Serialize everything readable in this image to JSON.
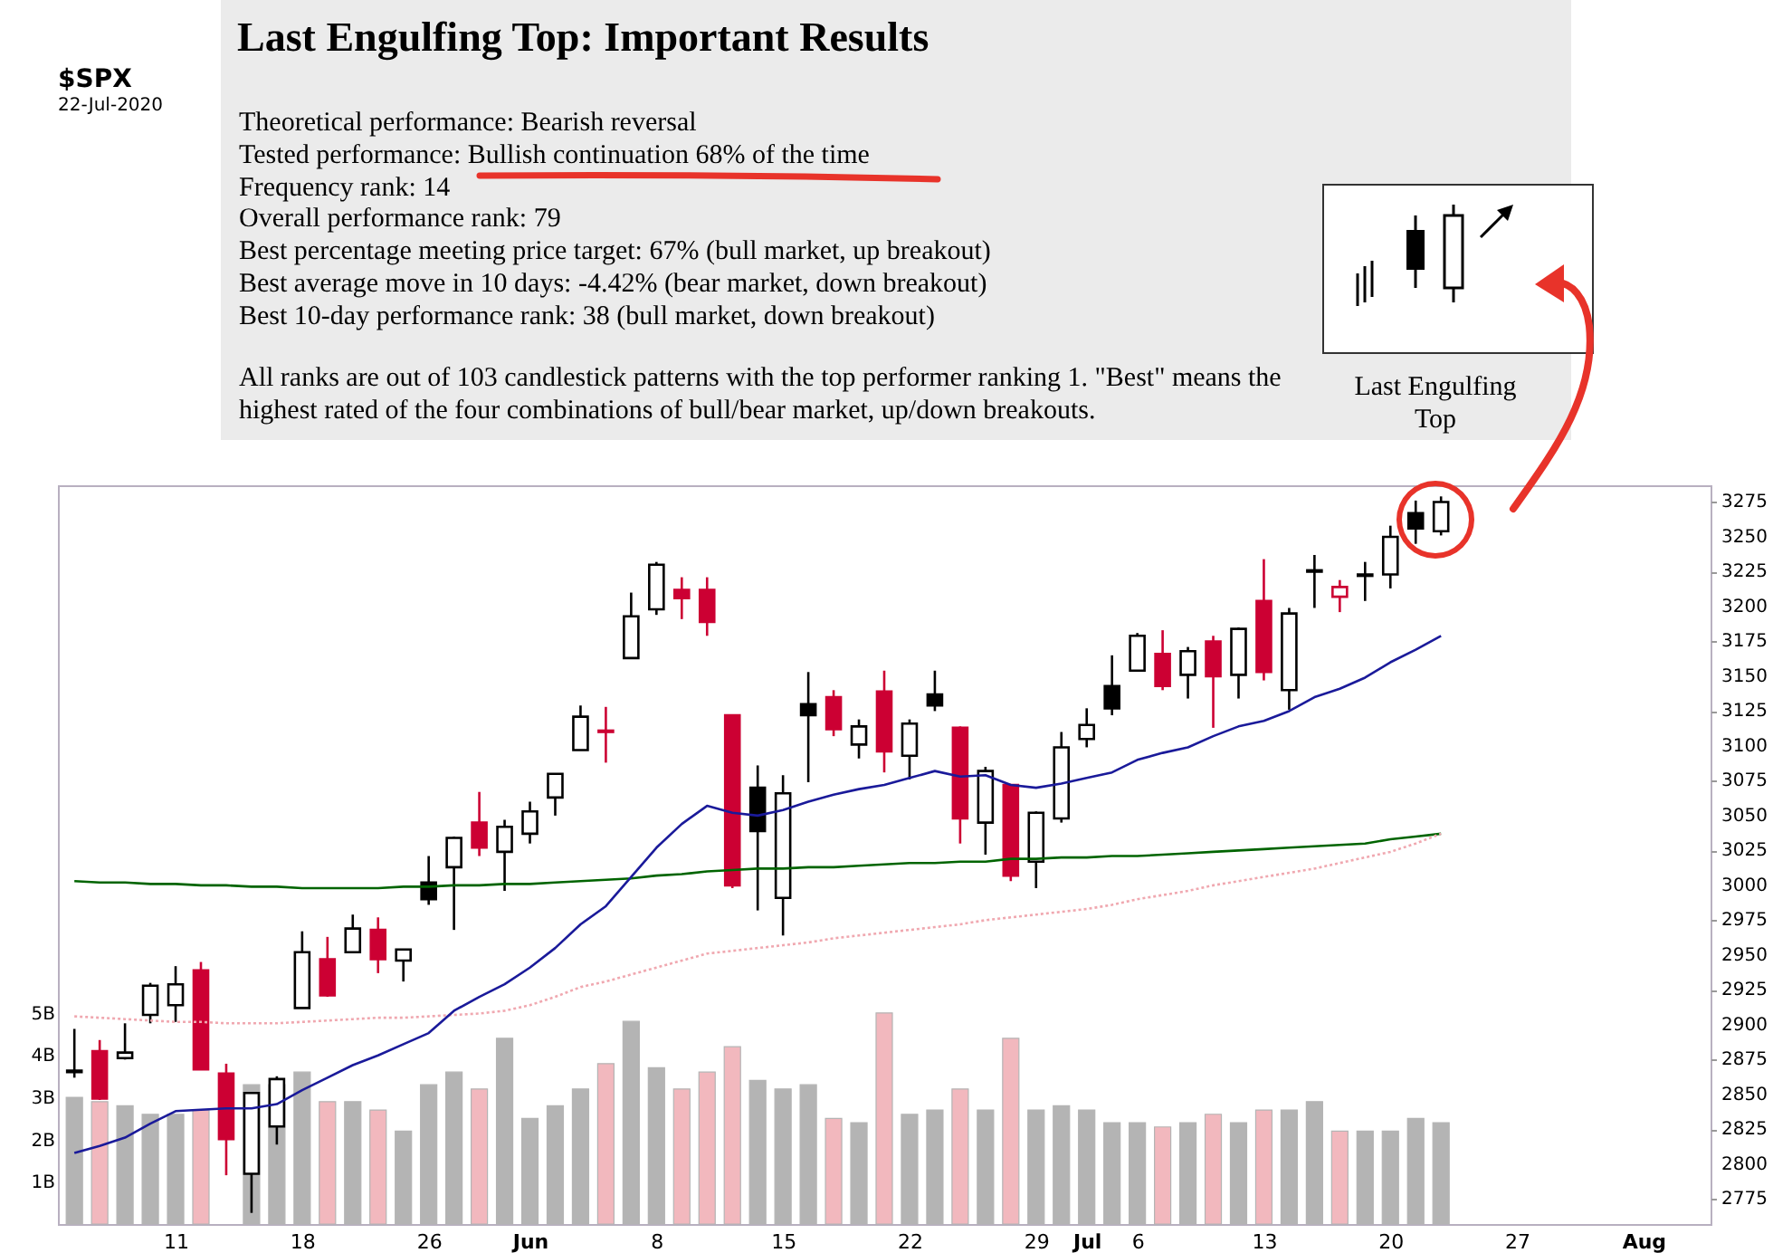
{
  "chart_data": [
    {
      "type": "other",
      "title": "Last Engulfing Top: Important Results",
      "annotations": [
        "Theoretical performance: Bearish reversal",
        "Tested performance: Bullish continuation 68% of the time",
        "Frequency rank: 14",
        "Overall performance rank: 79",
        "Best percentage meeting price target: 67% (bull market, up breakout)",
        "Best average move in 10 days: -4.42% (bear market, down breakout)",
        "Best 10-day performance rank: 38 (bull market, down breakout)",
        "All ranks are out of 103 candlestick patterns with the top performer ranking 1. \"Best\" means the highest rated of the four combinations of bull/bear market, up/down breakouts.",
        "Last Engulfing Top"
      ]
    },
    {
      "type": "candlestick",
      "title": "$SPX",
      "subtitle": "22-Jul-2020",
      "categories": [
        null,
        null,
        null,
        null,
        "11",
        null,
        null,
        null,
        null,
        "18",
        null,
        null,
        null,
        null,
        "26",
        null,
        null,
        null,
        "Jun",
        null,
        null,
        null,
        null,
        "8",
        null,
        null,
        null,
        null,
        "15",
        null,
        null,
        null,
        null,
        "22",
        null,
        null,
        null,
        null,
        "29",
        null,
        "Jul",
        null,
        "6",
        null,
        null,
        null,
        null,
        "13",
        null,
        null,
        null,
        null,
        "20",
        null,
        null,
        null,
        null,
        "27",
        null,
        null,
        null,
        null,
        "Aug",
        null,
        null
      ],
      "ohlc": [
        [
          2867,
          2897,
          2862,
          2866
        ],
        [
          2881,
          2889,
          2846,
          2847
        ],
        [
          2876,
          2901,
          2875,
          2880
        ],
        [
          2907,
          2930,
          2901,
          2928
        ],
        [
          2914,
          2942,
          2902,
          2929
        ],
        [
          2939,
          2945,
          2868,
          2868
        ],
        [
          2865,
          2872,
          2792,
          2818
        ],
        [
          2793,
          2851,
          2765,
          2851
        ],
        [
          2827,
          2863,
          2814,
          2861
        ],
        [
          2912,
          2967,
          2912,
          2952
        ],
        [
          2947,
          2963,
          2920,
          2921
        ],
        [
          2952,
          2979,
          2952,
          2969
        ],
        [
          2968,
          2977,
          2937,
          2947
        ],
        [
          2946,
          2954,
          2931,
          2954
        ],
        [
          3002,
          3021,
          2986,
          2990
        ],
        [
          3013,
          3035,
          2968,
          3034
        ],
        [
          3045,
          3067,
          3021,
          3027
        ],
        [
          3024,
          3047,
          2996,
          3042
        ],
        [
          3037,
          3060,
          3030,
          3053
        ],
        [
          3063,
          3080,
          3050,
          3080
        ],
        [
          3097,
          3129,
          3097,
          3121
        ],
        [
          3111,
          3128,
          3088,
          3110
        ],
        [
          3163,
          3210,
          3163,
          3193
        ],
        [
          3198,
          3232,
          3194,
          3230
        ],
        [
          3212,
          3221,
          3191,
          3206
        ],
        [
          3212,
          3221,
          3179,
          3189
        ],
        [
          3122,
          3122,
          2998,
          3000
        ],
        [
          3070,
          3086,
          2982,
          3039
        ],
        [
          2991,
          3079,
          2964,
          3066
        ],
        [
          3130,
          3153,
          3074,
          3122
        ],
        [
          3135,
          3140,
          3107,
          3112
        ],
        [
          3101,
          3119,
          3091,
          3114
        ],
        [
          3139,
          3154,
          3081,
          3096
        ],
        [
          3093,
          3119,
          3076,
          3116
        ],
        [
          3137,
          3154,
          3125,
          3129
        ],
        [
          3113,
          3114,
          3030,
          3048
        ],
        [
          3045,
          3085,
          3022,
          3082
        ],
        [
          3072,
          3072,
          3003,
          3007
        ],
        [
          3017,
          3053,
          2998,
          3052
        ],
        [
          3048,
          3110,
          3045,
          3099
        ],
        [
          3105,
          3127,
          3099,
          3115
        ],
        [
          3143,
          3165,
          3122,
          3127
        ],
        [
          3154,
          3181,
          3154,
          3179
        ],
        [
          3166,
          3183,
          3140,
          3143
        ],
        [
          3151,
          3171,
          3134,
          3168
        ],
        [
          3175,
          3179,
          3113,
          3150
        ],
        [
          3151,
          3185,
          3134,
          3184
        ],
        [
          3204,
          3234,
          3147,
          3153
        ],
        [
          3140,
          3199,
          3126,
          3195
        ],
        [
          3226,
          3237,
          3199,
          3225
        ],
        [
          3207,
          3219,
          3196,
          3214
        ],
        [
          3223,
          3232,
          3204,
          3222
        ],
        [
          3223,
          3258,
          3213,
          3250
        ],
        [
          3267,
          3276,
          3245,
          3256
        ],
        [
          3254,
          3279,
          3251,
          3275
        ],
        null,
        null,
        null,
        null,
        null,
        null,
        null,
        null,
        null,
        null
      ],
      "colors": [
        "#000000",
        "#cc0033",
        "#000000",
        "#000000",
        "#000000",
        "#cc0033",
        "#cc0033",
        "#000000",
        "#000000",
        "#000000",
        "#cc0033",
        "#000000",
        "#cc0033",
        "#000000",
        "#000000",
        "#000000",
        "#cc0033",
        "#000000",
        "#000000",
        "#000000",
        "#000000",
        "#cc0033",
        "#000000",
        "#000000",
        "#cc0033",
        "#cc0033",
        "#cc0033",
        "#000000",
        "#000000",
        "#000000",
        "#cc0033",
        "#000000",
        "#cc0033",
        "#000000",
        "#000000",
        "#cc0033",
        "#000000",
        "#cc0033",
        "#000000",
        "#000000",
        "#000000",
        "#000000",
        "#000000",
        "#cc0033",
        "#000000",
        "#cc0033",
        "#000000",
        "#cc0033",
        "#000000",
        "#000000",
        "#cc0033",
        "#000000",
        "#000000",
        "#000000",
        "#000000",
        null,
        null,
        null,
        null,
        null,
        null,
        null,
        null,
        null,
        null
      ],
      "series": [
        {
          "type": "bar",
          "axis": "y2",
          "color": "#b4b4b4",
          "colors": [
            "#b4b4b4",
            "#f2b8be",
            "#b4b4b4",
            "#b4b4b4",
            "#b4b4b4",
            "#f2b8be",
            null,
            "#b4b4b4",
            "#b4b4b4",
            "#b4b4b4",
            "#f2b8be",
            "#b4b4b4",
            "#f2b8be",
            "#b4b4b4",
            "#b4b4b4",
            "#b4b4b4",
            "#f2b8be",
            "#b4b4b4",
            "#b4b4b4",
            "#b4b4b4",
            "#b4b4b4",
            "#f2b8be",
            "#b4b4b4",
            "#b4b4b4",
            "#f2b8be",
            "#f2b8be",
            "#f2b8be",
            "#b4b4b4",
            "#b4b4b4",
            "#b4b4b4",
            "#f2b8be",
            "#b4b4b4",
            "#f2b8be",
            "#b4b4b4",
            "#b4b4b4",
            "#f2b8be",
            "#b4b4b4",
            "#f2b8be",
            "#b4b4b4",
            "#b4b4b4",
            "#b4b4b4",
            "#b4b4b4",
            "#b4b4b4",
            "#f2b8be",
            "#b4b4b4",
            "#f2b8be",
            "#b4b4b4",
            "#f2b8be",
            "#b4b4b4",
            "#b4b4b4",
            "#f2b8be",
            "#b4b4b4",
            "#b4b4b4",
            "#b4b4b4",
            "#b4b4b4",
            null,
            null,
            null,
            null,
            null,
            null,
            null,
            null,
            null,
            null
          ],
          "values": [
            3.0,
            2.9,
            2.8,
            2.6,
            2.6,
            2.7,
            null,
            3.3,
            3.3,
            3.6,
            2.9,
            2.9,
            2.7,
            2.2,
            3.3,
            3.6,
            3.2,
            4.4,
            2.5,
            2.8,
            3.2,
            3.8,
            4.8,
            3.7,
            3.2,
            3.6,
            4.2,
            3.4,
            3.2,
            3.3,
            2.5,
            2.4,
            5.0,
            2.6,
            2.7,
            3.2,
            2.7,
            4.4,
            2.7,
            2.8,
            2.7,
            2.4,
            2.4,
            2.3,
            2.4,
            2.6,
            2.4,
            2.7,
            2.7,
            2.9,
            2.2,
            2.2,
            2.2,
            2.5,
            2.4,
            null,
            null,
            null,
            null,
            null,
            null,
            null,
            null,
            null,
            null
          ]
        },
        {
          "type": "line",
          "color": "#006400",
          "line_style": "solid",
          "values": [
            3003,
            3002,
            3002,
            3001,
            3001,
            3000,
            3000,
            2999,
            2999,
            2998,
            2998,
            2998,
            2998,
            2999,
            2999,
            3000,
            3000,
            3001,
            3001,
            3002,
            3003,
            3004,
            3005,
            3007,
            3008,
            3010,
            3011,
            3012,
            3012,
            3013,
            3013,
            3014,
            3015,
            3016,
            3016,
            3017,
            3017,
            3019,
            3019,
            3020,
            3020,
            3021,
            3021,
            3022,
            3023,
            3024,
            3025,
            3026,
            3027,
            3028,
            3029,
            3030,
            3033,
            3035,
            3037,
            null,
            null,
            null,
            null,
            null,
            null,
            null,
            null,
            null,
            null
          ]
        },
        {
          "type": "line",
          "color": "#f0a8b0",
          "line_style": "dotted",
          "values": [
            2906,
            2905,
            2904,
            2903,
            2902,
            2902,
            2901,
            2901,
            2901,
            2902,
            2903,
            2904,
            2905,
            2905,
            2906,
            2907,
            2908,
            2910,
            2914,
            2920,
            2927,
            2931,
            2936,
            2941,
            2946,
            2951,
            2953,
            2955,
            2957,
            2959,
            2962,
            2964,
            2966,
            2968,
            2970,
            2972,
            2975,
            2977,
            2979,
            2981,
            2983,
            2986,
            2990,
            2993,
            2996,
            3000,
            3003,
            3006,
            3009,
            3012,
            3016,
            3020,
            3024,
            3030,
            3037,
            null,
            null,
            null,
            null,
            null,
            null,
            null,
            null,
            null,
            null
          ]
        },
        {
          "type": "line",
          "color": "#1a1a9a",
          "line_style": "solid",
          "values": [
            2808,
            2813,
            2819,
            2829,
            2838,
            2839,
            2840,
            2840,
            2843,
            2853,
            2862,
            2871,
            2878,
            2886,
            2894,
            2910,
            2920,
            2929,
            2941,
            2955,
            2972,
            2985,
            3006,
            3027,
            3044,
            3057,
            3052,
            3050,
            3054,
            3060,
            3065,
            3069,
            3072,
            3077,
            3082,
            3078,
            3079,
            3072,
            3070,
            3073,
            3077,
            3081,
            3090,
            3095,
            3099,
            3107,
            3114,
            3118,
            3125,
            3135,
            3141,
            3149,
            3160,
            3169,
            3179,
            null,
            null,
            null,
            null,
            null,
            null,
            null,
            null,
            null,
            null
          ]
        }
      ],
      "ylim": [
        2757,
        3287
      ],
      "yticks": [
        2775,
        2800,
        2825,
        2850,
        2875,
        2900,
        2925,
        2950,
        2975,
        3000,
        3025,
        3050,
        3075,
        3100,
        3125,
        3150,
        3175,
        3200,
        3225,
        3250,
        3275
      ],
      "y2lim": [
        0,
        17.5
      ],
      "y2ticks": [
        {
          "value": 1,
          "label": "1B"
        },
        {
          "value": 2,
          "label": "2B"
        },
        {
          "value": 3,
          "label": "3B"
        },
        {
          "value": 4,
          "label": "4B"
        },
        {
          "value": 5,
          "label": "5B"
        }
      ]
    }
  ]
}
